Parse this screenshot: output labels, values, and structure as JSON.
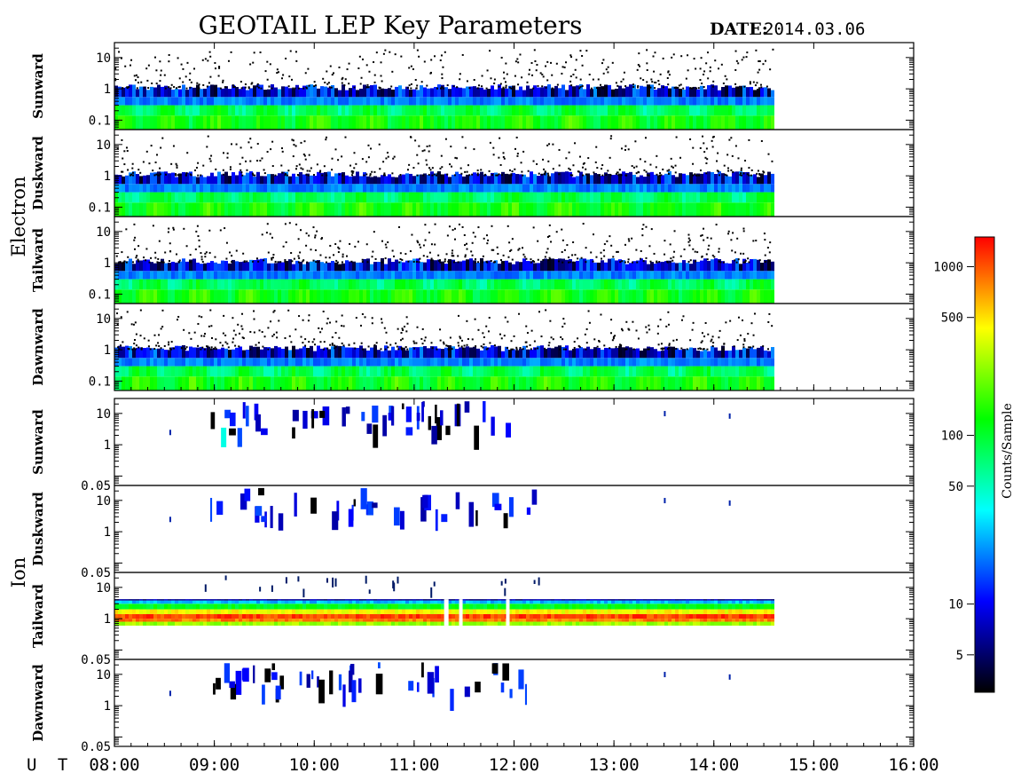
{
  "title": "GEOTAIL LEP Key Parameters",
  "date_label": "DATE:",
  "date_value": "2014.03.06",
  "x_axis_label": "U T",
  "colorbar": {
    "label": "Counts/Sample",
    "scale": "log",
    "range": [
      3,
      1500
    ],
    "ticks": [
      {
        "value": 5,
        "label": "5"
      },
      {
        "value": 10,
        "label": "10"
      },
      {
        "value": 50,
        "label": "50"
      },
      {
        "value": 100,
        "label": "100"
      },
      {
        "value": 500,
        "label": "500"
      },
      {
        "value": 1000,
        "label": "1000"
      }
    ],
    "colormap": [
      "#000000",
      "#0000ff",
      "#00ffff",
      "#00ff00",
      "#ffff00",
      "#ff0000"
    ]
  },
  "chart_data": {
    "type": "heatmap",
    "x_unit": "UT",
    "x_range": [
      "08:00",
      "16:00"
    ],
    "data_end": "14:35",
    "x_ticks": [
      "08:00",
      "09:00",
      "10:00",
      "11:00",
      "12:00",
      "13:00",
      "14:00",
      "15:00",
      "16:00"
    ],
    "groups": [
      {
        "name": "Electron",
        "y_scale": "log",
        "y_range": [
          0.05,
          30
        ],
        "y_ticks": [
          "0.1",
          "1",
          "10"
        ],
        "panels": [
          {
            "name": "Sunward"
          },
          {
            "name": "Duskward"
          },
          {
            "name": "Tailward"
          },
          {
            "name": "Dawnward"
          }
        ]
      },
      {
        "name": "Ion",
        "y_scale": "log",
        "y_range": [
          0.05,
          30
        ],
        "y_ticks": [
          "0.05",
          "1",
          "10"
        ],
        "panels": [
          {
            "name": "Sunward"
          },
          {
            "name": "Duskward"
          },
          {
            "name": "Tailward"
          },
          {
            "name": "Dawnward"
          }
        ]
      }
    ]
  }
}
